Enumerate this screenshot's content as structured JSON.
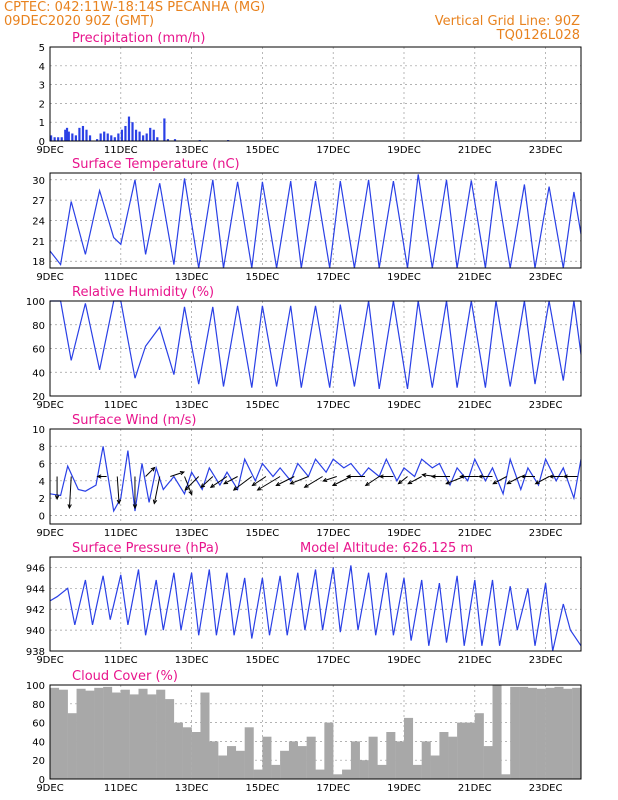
{
  "header": {
    "line1_left": "CPTEC:   042:11W-18:14S   PECANHA (MG)",
    "line2_left": "09DEC2020 90Z (GMT)",
    "line1_right": "Vertical Grid Line: 90Z",
    "line2_right": "TQ0126L028"
  },
  "chart_data": [
    {
      "type": "bar",
      "title": "Precipitation (mm/h)",
      "xlabel": "",
      "ylabel": "",
      "x_ticks": [
        "9DEC",
        "11DEC",
        "13DEC",
        "15DEC",
        "17DEC",
        "19DEC",
        "21DEC",
        "23DEC"
      ],
      "x_range_days": [
        9,
        24
      ],
      "ylim": [
        0,
        5
      ],
      "y_ticks": [
        0,
        1,
        2,
        3,
        4,
        5
      ],
      "grid": true,
      "series": [
        {
          "x_days": [
            9.0,
            9.1,
            9.2,
            9.3,
            9.4,
            9.45,
            9.5,
            9.6,
            9.7,
            9.8,
            9.9,
            10.0,
            10.1,
            10.3,
            10.4,
            10.5,
            10.6,
            10.7,
            10.8,
            10.9,
            11.0,
            11.1,
            11.2,
            11.3,
            11.4,
            11.5,
            11.6,
            11.7,
            11.8,
            11.9,
            12.0,
            12.2,
            12.3,
            12.5,
            13.2,
            14.0,
            15.0,
            17.0,
            19.5,
            21.5,
            23.0
          ],
          "values": [
            0.3,
            0.2,
            0.2,
            0.2,
            0.6,
            0.7,
            0.5,
            0.4,
            0.3,
            0.7,
            0.8,
            0.6,
            0.3,
            0.1,
            0.4,
            0.5,
            0.4,
            0.3,
            0.2,
            0.4,
            0.6,
            0.8,
            1.3,
            1.0,
            0.6,
            0.5,
            0.3,
            0.4,
            0.7,
            0.6,
            0.2,
            1.2,
            0.1,
            0.1,
            0.05,
            0.05,
            0.03,
            0.02,
            0.03,
            0.02,
            0.02
          ]
        }
      ]
    },
    {
      "type": "line",
      "title": "Surface Temperature (nC)",
      "xlabel": "",
      "ylabel": "",
      "x_ticks": [
        "9DEC",
        "11DEC",
        "13DEC",
        "15DEC",
        "17DEC",
        "19DEC",
        "21DEC",
        "23DEC"
      ],
      "x_range_days": [
        9,
        24
      ],
      "ylim": [
        17,
        31
      ],
      "y_ticks": [
        18,
        21,
        24,
        27,
        30
      ],
      "grid": true,
      "series": [
        {
          "x_days": [
            9.0,
            9.3,
            9.6,
            10.0,
            10.4,
            10.8,
            11.0,
            11.4,
            11.7,
            12.1,
            12.5,
            12.8,
            13.2,
            13.6,
            13.9,
            14.3,
            14.7,
            15.0,
            15.4,
            15.8,
            16.1,
            16.5,
            16.9,
            17.2,
            17.6,
            18.0,
            18.3,
            18.7,
            19.1,
            19.4,
            19.8,
            20.2,
            20.5,
            20.9,
            21.3,
            21.6,
            22.0,
            22.4,
            22.7,
            23.1,
            23.5,
            23.8,
            24.0
          ],
          "values": [
            19.5,
            17.5,
            26.8,
            19.0,
            28.4,
            21.5,
            20.5,
            30.0,
            19.0,
            29.5,
            17.5,
            30.2,
            17.0,
            30.0,
            17.0,
            29.7,
            17.0,
            29.7,
            17.0,
            29.8,
            17.0,
            29.8,
            17.0,
            29.8,
            17.0,
            30.0,
            17.0,
            29.8,
            17.0,
            30.8,
            17.0,
            30.0,
            17.0,
            29.9,
            17.0,
            29.8,
            17.0,
            29.3,
            17.0,
            29.0,
            17.0,
            28.2,
            22.0
          ]
        }
      ]
    },
    {
      "type": "line",
      "title": "Relative Humidity (%)",
      "xlabel": "",
      "ylabel": "",
      "x_ticks": [
        "9DEC",
        "11DEC",
        "13DEC",
        "15DEC",
        "17DEC",
        "19DEC",
        "21DEC",
        "23DEC"
      ],
      "x_range_days": [
        9,
        24
      ],
      "ylim": [
        20,
        100
      ],
      "y_ticks": [
        20,
        40,
        60,
        80,
        100
      ],
      "grid": true,
      "series": [
        {
          "x_days": [
            9.0,
            9.3,
            9.6,
            10.0,
            10.4,
            10.8,
            11.0,
            11.4,
            11.7,
            12.1,
            12.5,
            12.8,
            13.2,
            13.6,
            13.9,
            14.3,
            14.7,
            15.0,
            15.4,
            15.8,
            16.1,
            16.5,
            16.9,
            17.2,
            17.6,
            18.0,
            18.3,
            18.7,
            19.1,
            19.4,
            19.8,
            20.2,
            20.5,
            20.9,
            21.3,
            21.6,
            22.0,
            22.4,
            22.7,
            23.1,
            23.5,
            23.8,
            24.0
          ],
          "values": [
            100,
            100,
            50,
            98,
            42,
            100,
            100,
            35,
            62,
            78,
            38,
            95,
            30,
            95,
            28,
            96,
            27,
            96,
            28,
            96,
            27,
            96,
            27,
            97,
            28,
            100,
            26,
            100,
            26,
            100,
            27,
            100,
            27,
            100,
            27,
            100,
            28,
            100,
            30,
            100,
            33,
            100,
            55
          ]
        }
      ]
    },
    {
      "type": "line",
      "title": "Surface Wind (m/s)",
      "xlabel": "",
      "ylabel": "",
      "x_ticks": [
        "9DEC",
        "11DEC",
        "13DEC",
        "15DEC",
        "17DEC",
        "19DEC",
        "21DEC",
        "23DEC"
      ],
      "x_range_days": [
        9,
        24
      ],
      "ylim": [
        -1,
        10
      ],
      "y_ticks": [
        0,
        2,
        4,
        6,
        8,
        10
      ],
      "grid": true,
      "series": [
        {
          "x_days": [
            9.0,
            9.3,
            9.5,
            9.8,
            10.0,
            10.3,
            10.5,
            10.8,
            11.0,
            11.2,
            11.4,
            11.6,
            11.8,
            12.0,
            12.2,
            12.5,
            12.8,
            13.0,
            13.3,
            13.5,
            13.8,
            14.0,
            14.3,
            14.5,
            14.8,
            15.0,
            15.3,
            15.5,
            15.8,
            16.0,
            16.3,
            16.5,
            16.8,
            17.0,
            17.3,
            17.5,
            17.8,
            18.0,
            18.3,
            18.5,
            18.8,
            19.0,
            19.3,
            19.5,
            19.8,
            20.0,
            20.3,
            20.5,
            20.8,
            21.0,
            21.3,
            21.5,
            21.8,
            22.0,
            22.3,
            22.5,
            22.8,
            23.0,
            23.3,
            23.5,
            23.8,
            24.0
          ],
          "values": [
            2.5,
            2.3,
            5.7,
            3.0,
            2.8,
            3.5,
            8.0,
            0.5,
            2.0,
            7.5,
            0.5,
            6.0,
            1.5,
            5.5,
            3.0,
            4.5,
            2.5,
            5.0,
            3.0,
            5.5,
            3.5,
            5.0,
            3.0,
            6.5,
            4.0,
            6.0,
            4.5,
            5.5,
            4.0,
            6.0,
            4.5,
            6.5,
            5.0,
            6.5,
            5.5,
            6.0,
            4.5,
            5.5,
            4.5,
            6.5,
            4.0,
            5.5,
            4.5,
            6.5,
            5.5,
            6.0,
            3.5,
            5.5,
            4.0,
            6.5,
            4.0,
            5.5,
            2.5,
            6.5,
            3.0,
            5.5,
            3.5,
            6.5,
            4.0,
            5.5,
            2.0,
            6.5
          ]
        }
      ],
      "wind_vectors": {
        "x_days": [
          9.2,
          9.6,
          10.6,
          10.9,
          11.4,
          11.7,
          12.1,
          12.4,
          12.8,
          13.2,
          13.6,
          14.0,
          14.3,
          14.7,
          15.1,
          15.5,
          15.9,
          16.3,
          16.7,
          17.1,
          17.5,
          17.9,
          18.3,
          18.7,
          19.1,
          19.5,
          19.9,
          20.3,
          20.7,
          21.1,
          21.5,
          21.9,
          22.3,
          22.7,
          23.1,
          23.5,
          23.9
        ],
        "u": [
          0,
          -0.2,
          -1.0,
          0.2,
          0,
          1.0,
          -0.6,
          1.5,
          0.8,
          -1.5,
          -1.3,
          -1.8,
          -1.5,
          -2.0,
          -1.5,
          -2.5,
          -2.0,
          -2.0,
          -2.0,
          -1.5,
          -2.0,
          -2.0,
          -1.5,
          -1.5,
          -1.0,
          -1.5,
          -1.5,
          -2.0,
          -2.0,
          -2.0,
          -1.5,
          -1.5,
          -1.5,
          -1.5,
          -1.5,
          -1.5,
          -1.5
        ],
        "v": [
          -2.5,
          -3.5,
          0,
          -3.0,
          -3.5,
          1.0,
          -3.0,
          0.5,
          -2.0,
          -1.5,
          -1.2,
          -1.2,
          -0.8,
          -1.5,
          -1.0,
          -1.5,
          -1.0,
          -0.8,
          -1.2,
          -0.5,
          -1.0,
          0,
          -1.0,
          0,
          -0.8,
          -0.8,
          0.2,
          0,
          -0.8,
          0,
          0,
          -0.8,
          -0.8,
          0,
          -0.8,
          0,
          0
        ]
      }
    },
    {
      "type": "line",
      "title": "Surface Pressure (hPa)",
      "annotation": "Model Altitude: 626.125 m",
      "xlabel": "",
      "ylabel": "",
      "x_ticks": [
        "9DEC",
        "11DEC",
        "13DEC",
        "15DEC",
        "17DEC",
        "19DEC",
        "21DEC",
        "23DEC"
      ],
      "x_range_days": [
        9,
        24
      ],
      "ylim": [
        938,
        947
      ],
      "y_ticks": [
        938,
        940,
        942,
        944,
        946
      ],
      "grid": true,
      "series": [
        {
          "x_days": [
            9.0,
            9.2,
            9.5,
            9.7,
            10.0,
            10.2,
            10.5,
            10.7,
            11.0,
            11.2,
            11.5,
            11.7,
            12.0,
            12.2,
            12.5,
            12.7,
            13.0,
            13.2,
            13.5,
            13.7,
            14.0,
            14.2,
            14.5,
            14.7,
            15.0,
            15.2,
            15.5,
            15.7,
            16.0,
            16.2,
            16.5,
            16.7,
            17.0,
            17.2,
            17.5,
            17.7,
            18.0,
            18.2,
            18.5,
            18.7,
            19.0,
            19.2,
            19.5,
            19.7,
            20.0,
            20.2,
            20.5,
            20.7,
            21.0,
            21.2,
            21.5,
            21.7,
            22.0,
            22.2,
            22.5,
            22.7,
            23.0,
            23.2,
            23.5,
            23.7,
            24.0
          ],
          "values": [
            942.8,
            943.2,
            944.0,
            940.5,
            944.8,
            940.5,
            945.2,
            941.0,
            945.3,
            940.5,
            945.8,
            939.5,
            944.8,
            940.0,
            945.5,
            940.0,
            945.5,
            939.5,
            945.8,
            939.5,
            945.5,
            939.5,
            945.0,
            939.2,
            945.0,
            939.5,
            945.2,
            939.5,
            945.5,
            940.0,
            945.8,
            940.0,
            946.0,
            939.8,
            946.2,
            940.0,
            945.5,
            939.5,
            945.5,
            939.5,
            945.0,
            939.0,
            944.8,
            938.5,
            944.5,
            938.8,
            945.2,
            938.5,
            944.8,
            938.5,
            944.8,
            938.5,
            944.2,
            940.0,
            944.0,
            938.5,
            944.5,
            938.0,
            942.5,
            940.0,
            938.5
          ]
        }
      ]
    },
    {
      "type": "area",
      "title": "Cloud Cover (%)",
      "xlabel": "",
      "ylabel": "",
      "x_ticks": [
        "9DEC",
        "11DEC",
        "13DEC",
        "15DEC",
        "17DEC",
        "19DEC",
        "21DEC",
        "23DEC"
      ],
      "x_range_days": [
        9,
        24
      ],
      "ylim": [
        0,
        100
      ],
      "y_ticks": [
        0,
        20,
        40,
        60,
        80,
        100
      ],
      "grid": true,
      "series": [
        {
          "x_days": [
            9.0,
            9.25,
            9.5,
            9.75,
            10.0,
            10.25,
            10.5,
            10.75,
            11.0,
            11.25,
            11.5,
            11.75,
            12.0,
            12.25,
            12.5,
            12.75,
            13.0,
            13.25,
            13.5,
            13.75,
            14.0,
            14.25,
            14.5,
            14.75,
            15.0,
            15.25,
            15.5,
            15.75,
            16.0,
            16.25,
            16.5,
            16.75,
            17.0,
            17.25,
            17.5,
            17.75,
            18.0,
            18.25,
            18.5,
            18.75,
            19.0,
            19.25,
            19.5,
            19.75,
            20.0,
            20.25,
            20.5,
            20.75,
            21.0,
            21.25,
            21.5,
            21.75,
            22.0,
            22.25,
            22.5,
            22.75,
            23.0,
            23.25,
            23.5,
            23.75,
            24.0
          ],
          "values": [
            97,
            95,
            70,
            96,
            94,
            97,
            98,
            92,
            95,
            90,
            96,
            90,
            95,
            85,
            60,
            55,
            50,
            92,
            40,
            25,
            35,
            30,
            55,
            10,
            45,
            15,
            30,
            40,
            35,
            45,
            10,
            60,
            5,
            10,
            40,
            20,
            45,
            15,
            50,
            40,
            65,
            15,
            40,
            25,
            50,
            45,
            60,
            60,
            70,
            35,
            100,
            5,
            98,
            98,
            97,
            96,
            97,
            98,
            96,
            97,
            98
          ]
        }
      ]
    }
  ]
}
